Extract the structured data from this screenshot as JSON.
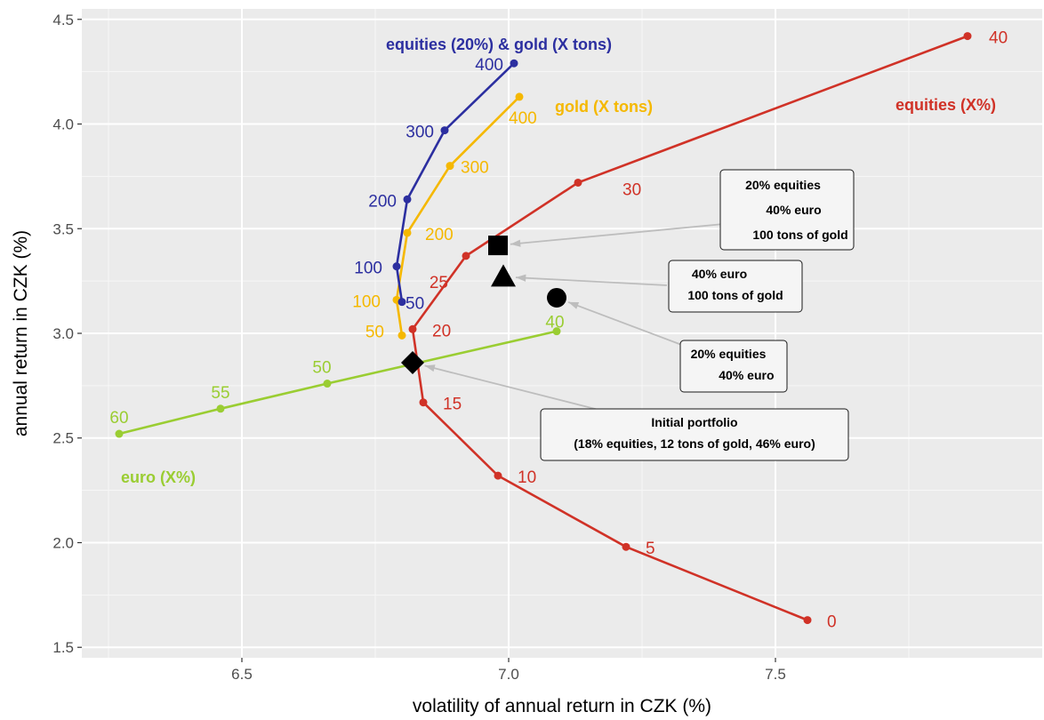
{
  "chart_data": {
    "type": "line",
    "title": "",
    "xlabel": "volatility of annual return in CZK (%)",
    "ylabel": "annual return in CZK (%)",
    "xlim": [
      6.2,
      8.0
    ],
    "ylim": [
      1.45,
      4.55
    ],
    "xticks": [
      "6.5",
      "7.0",
      "7.5"
    ],
    "xtick_values": [
      6.5,
      7.0,
      7.5
    ],
    "yticks": [
      "1.5",
      "2.0",
      "2.5",
      "3.0",
      "3.5",
      "4.0",
      "4.5"
    ],
    "ytick_values": [
      1.5,
      2.0,
      2.5,
      3.0,
      3.5,
      4.0,
      4.5
    ],
    "grid": true,
    "background": "#ebebeb",
    "series": [
      {
        "name": "equities (X%)",
        "color": "#d03227",
        "points": [
          {
            "x": 7.56,
            "y": 1.63,
            "label": "0"
          },
          {
            "x": 7.22,
            "y": 1.98,
            "label": "5"
          },
          {
            "x": 6.98,
            "y": 2.32,
            "label": "10"
          },
          {
            "x": 6.84,
            "y": 2.67,
            "label": "15"
          },
          {
            "x": 6.82,
            "y": 3.02,
            "label": "20"
          },
          {
            "x": 6.92,
            "y": 3.37,
            "label": "25"
          },
          {
            "x": 7.13,
            "y": 3.72,
            "label": "30"
          },
          {
            "x": 7.86,
            "y": 4.42,
            "label": "40"
          }
        ]
      },
      {
        "name": "gold (X tons)",
        "color": "#f5b800",
        "points": [
          {
            "x": 6.8,
            "y": 2.99,
            "label": "50"
          },
          {
            "x": 6.79,
            "y": 3.16,
            "label": "100"
          },
          {
            "x": 6.81,
            "y": 3.48,
            "label": "200"
          },
          {
            "x": 6.89,
            "y": 3.8,
            "label": "300"
          },
          {
            "x": 7.02,
            "y": 4.13,
            "label": "400"
          }
        ]
      },
      {
        "name": "equities (20%) & gold (X tons)",
        "color": "#2c2fa0",
        "points": [
          {
            "x": 6.8,
            "y": 3.15,
            "label": "50"
          },
          {
            "x": 6.79,
            "y": 3.32,
            "label": "100"
          },
          {
            "x": 6.81,
            "y": 3.64,
            "label": "200"
          },
          {
            "x": 6.88,
            "y": 3.97,
            "label": "300"
          },
          {
            "x": 7.01,
            "y": 4.29,
            "label": "400"
          }
        ]
      },
      {
        "name": "euro (X%)",
        "color": "#9acd32",
        "points": [
          {
            "x": 6.27,
            "y": 2.52,
            "label": "60"
          },
          {
            "x": 6.46,
            "y": 2.64,
            "label": "55"
          },
          {
            "x": 6.66,
            "y": 2.76,
            "label": "50"
          },
          {
            "x": 7.09,
            "y": 3.01,
            "label": "40"
          }
        ]
      }
    ],
    "portfolios": [
      {
        "shape": "diamond",
        "x": 6.82,
        "y": 2.86,
        "lines": [
          "Initial portfolio",
          "(18% equities, 12 tons of gold, 46% euro)"
        ]
      },
      {
        "shape": "circle",
        "x": 7.09,
        "y": 3.17,
        "lines": [
          "20% equities",
          "40% euro"
        ]
      },
      {
        "shape": "triangle",
        "x": 6.99,
        "y": 3.27,
        "lines": [
          "40% euro",
          "100 tons of gold"
        ]
      },
      {
        "shape": "square",
        "x": 6.98,
        "y": 3.42,
        "lines": [
          "20% equities",
          "40% euro",
          "100 tons of gold"
        ]
      }
    ]
  }
}
